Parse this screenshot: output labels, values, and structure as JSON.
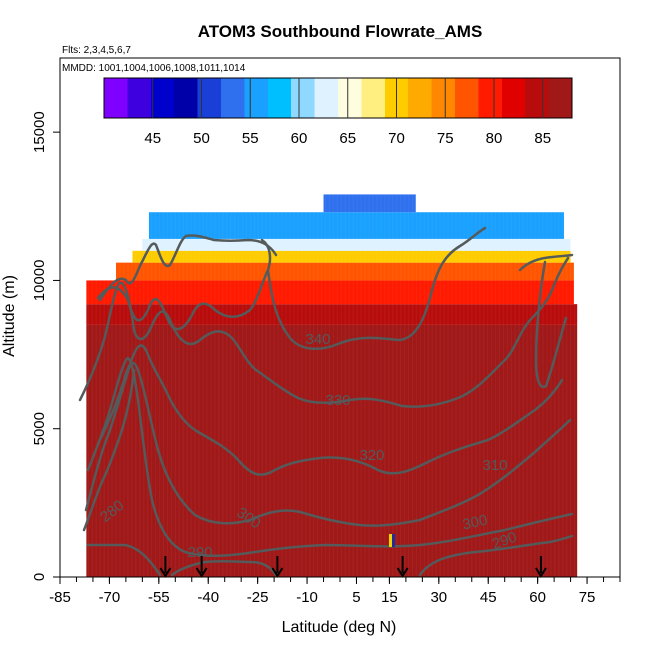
{
  "chart_data": {
    "type": "heatmap",
    "title": "ATOM3 Southbound Flowrate_AMS",
    "subtitle_flts": "Flts: 2,3,4,5,6,7",
    "subtitle_mmdd": "MMDD: 1001,1004,1006,1008,1011,1014",
    "xlabel": "Latitude (deg N)",
    "ylabel": "Altitude (m)",
    "xlim": [
      -85,
      85
    ],
    "ylim": [
      0,
      17500
    ],
    "xticks": [
      "-85",
      "-70",
      "-55",
      "-40",
      "-25",
      "-10",
      "5",
      "15",
      "30",
      "45",
      "60",
      "75"
    ],
    "xtick_values": [
      -85,
      -70,
      -55,
      -40,
      -25,
      -10,
      5,
      15,
      30,
      45,
      60,
      75
    ],
    "yticks": [
      "0",
      "5000",
      "10000",
      "15000"
    ],
    "ytick_values": [
      0,
      5000,
      10000,
      15000
    ],
    "colorbar": {
      "min": 40,
      "max": 88,
      "tick_labels": [
        "45",
        "50",
        "55",
        "60",
        "65",
        "70",
        "75",
        "80",
        "85"
      ],
      "tick_values": [
        45,
        50,
        55,
        60,
        65,
        70,
        75,
        80,
        85
      ],
      "colors": [
        "#7f00ff",
        "#3f00e0",
        "#0000cc",
        "#0000a8",
        "#1a3fd6",
        "#2f70ee",
        "#1aa0ff",
        "#00bfff",
        "#8fd8ff",
        "#dff2ff",
        "#fffde0",
        "#ffee80",
        "#ffcc00",
        "#ffaa00",
        "#ff8800",
        "#ff5500",
        "#ff1a00",
        "#e00000",
        "#b80c0c",
        "#a01818"
      ]
    },
    "field_bands": [
      {
        "alt": [
          12300,
          12900
        ],
        "lat": [
          -5,
          23
        ],
        "value": 53
      },
      {
        "alt": [
          11400,
          12300
        ],
        "lat": [
          -58,
          68
        ],
        "value": 56
      },
      {
        "alt": [
          11000,
          11400
        ],
        "lat": [
          -60,
          70
        ],
        "value": 62
      },
      {
        "alt": [
          10600,
          11000
        ],
        "lat": [
          -63,
          70
        ],
        "value": 70
      },
      {
        "alt": [
          10000,
          10600
        ],
        "lat": [
          -68,
          71
        ],
        "value": 78
      },
      {
        "alt": [
          9200,
          10000
        ],
        "lat": [
          -77,
          71
        ],
        "value": 80
      },
      {
        "alt": [
          8500,
          9200
        ],
        "lat": [
          -77,
          72
        ],
        "value": 84
      },
      {
        "alt": [
          0,
          8500
        ],
        "lat": [
          -77,
          72
        ],
        "value": 86
      }
    ],
    "contour_labels": [
      "340",
      "330",
      "320",
      "310",
      "300",
      "290",
      "280",
      "300",
      "290"
    ],
    "flight_markers_lat": [
      -53,
      -42,
      -19,
      19,
      61
    ]
  }
}
